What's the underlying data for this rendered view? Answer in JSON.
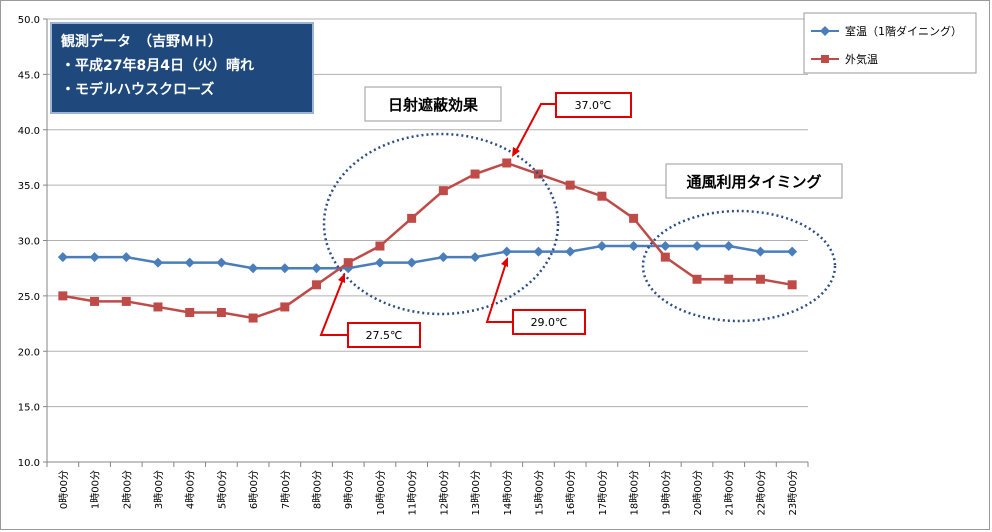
{
  "chart_data": {
    "type": "line",
    "title_lines": [
      "観測データ　（吉野ＭＨ）",
      "・平成27年8月4日（火）晴れ",
      "・モデルハウスクローズ"
    ],
    "categories": [
      "0時00分",
      "1時00分",
      "2時00分",
      "3時00分",
      "4時00分",
      "5時00分",
      "6時00分",
      "7時00分",
      "8時00分",
      "9時00分",
      "10時00分",
      "11時00分",
      "12時00分",
      "13時00分",
      "14時00分",
      "15時00分",
      "16時00分",
      "17時00分",
      "18時00分",
      "19時00分",
      "20時00分",
      "21時00分",
      "22時00分",
      "23時00分"
    ],
    "ylim": [
      10.0,
      50.0
    ],
    "yticks": [
      "10.0",
      "15.0",
      "20.0",
      "25.0",
      "30.0",
      "35.0",
      "40.0",
      "45.0",
      "50.0"
    ],
    "series": [
      {
        "name": "室温（1階ダイニング）",
        "color": "#4a7ebb",
        "marker": "diamond",
        "values": [
          28.5,
          28.5,
          28.5,
          28.0,
          28.0,
          28.0,
          27.5,
          27.5,
          27.5,
          27.5,
          28.0,
          28.0,
          28.5,
          28.5,
          29.0,
          29.0,
          29.0,
          29.5,
          29.5,
          29.5,
          29.5,
          29.5,
          29.0,
          29.0
        ]
      },
      {
        "name": "外気温",
        "color": "#be4b48",
        "marker": "square",
        "values": [
          25.0,
          24.5,
          24.5,
          24.0,
          23.5,
          23.5,
          23.0,
          24.0,
          26.0,
          28.0,
          29.5,
          32.0,
          34.5,
          36.0,
          37.0,
          36.0,
          35.0,
          34.0,
          32.0,
          28.5,
          26.5,
          26.5,
          26.5,
          26.0
        ]
      }
    ],
    "legend": "top-right",
    "grid": "horizontal",
    "annotations": {
      "shading_label": "日射遮蔽効果",
      "ventilation_label": "通風利用タイミング",
      "callout_outside_peak": "37.0℃",
      "callout_room_9": "27.5℃",
      "callout_room_14": "29.0℃"
    }
  }
}
